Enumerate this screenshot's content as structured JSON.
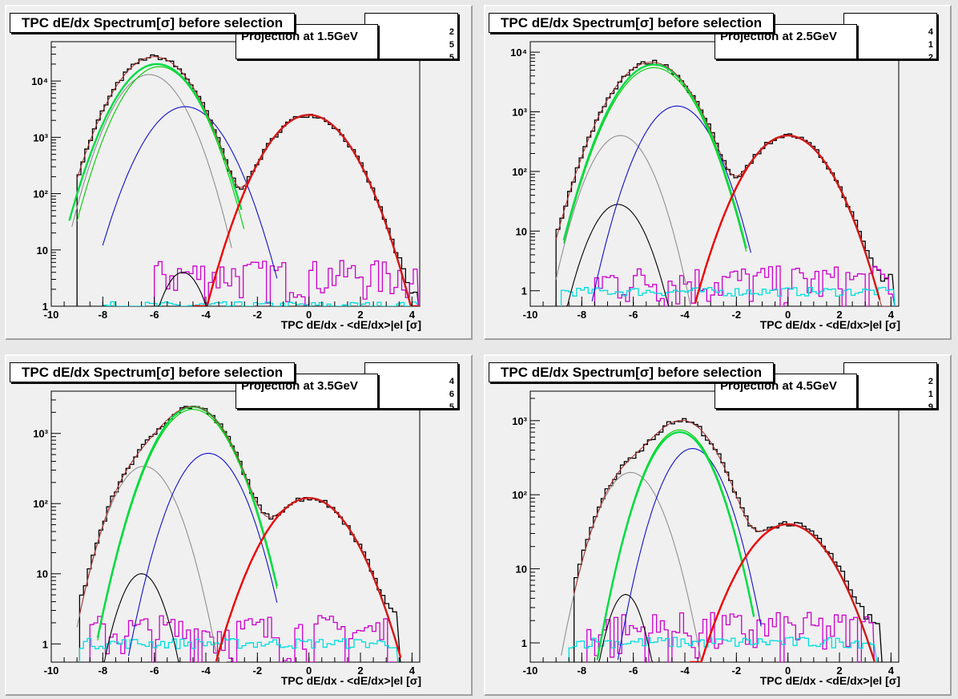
{
  "colors": {
    "data": "#000000",
    "fit_total": "#b03030",
    "electron": "#ee0000",
    "pion": "#1010cc",
    "kaon": "#00cc00",
    "proton": "#00dd44",
    "deuteron": "#000000",
    "other": "#909090",
    "residual1": "#cc00cc",
    "residual2": "#00dddd"
  },
  "panels": [
    {
      "title": "TPC dE/dx Spectrum[σ] before selection",
      "projection": "Projection at 1.5GeV",
      "stat_digits": [
        "2",
        "5",
        "5"
      ],
      "chart_data": {
        "type": "line",
        "yscale": "log",
        "xlim": [
          -10,
          4.3
        ],
        "ylim": [
          1,
          50000
        ],
        "xticks": [
          -10,
          -8,
          -6,
          -4,
          -2,
          0,
          2,
          4
        ],
        "yticks": [
          {
            "v": 1,
            "label": "1"
          },
          {
            "v": 10,
            "label": "10"
          },
          {
            "v": 100,
            "label": "10²"
          },
          {
            "v": 1000,
            "label": "10³"
          },
          {
            "v": 10000,
            "label": "10⁴"
          }
        ],
        "xlabel": "TPC dE/dx - <dE/dx>|el [σ]",
        "gaussians": [
          {
            "kind": "other",
            "A": 13000,
            "mu": -6.2,
            "sigma": 0.85,
            "range": [
              -9.2,
              -3.0
            ]
          },
          {
            "kind": "pion",
            "A": 3500,
            "mu": -4.8,
            "sigma": 0.95,
            "range": [
              -8.0,
              -1.2
            ]
          },
          {
            "kind": "kaon",
            "A": 18000,
            "mu": -5.8,
            "sigma": 0.9,
            "range": [
              -9.0,
              -2.5
            ]
          },
          {
            "kind": "proton",
            "A": 20000,
            "mu": -5.9,
            "sigma": 0.95,
            "range": [
              -9.3,
              -2.6
            ]
          },
          {
            "kind": "electron",
            "A": 2500,
            "mu": 0.0,
            "sigma": 1.0,
            "range": [
              -4.5,
              4.3
            ]
          },
          {
            "kind": "deuteron",
            "A": 4,
            "mu": -4.9,
            "sigma": 0.55,
            "range": [
              -6.2,
              -3.6
            ]
          }
        ],
        "total_peaks": [
          [
            -6.0,
            27000,
            0.95
          ],
          [
            0.0,
            2500,
            1.0
          ]
        ],
        "hist_range": [
          -9.0,
          4.1
        ],
        "residual1": {
          "range": [
            -6.0,
            4.1
          ],
          "level": 2.5
        },
        "residual2": {
          "range": [
            -8.0,
            4.1
          ],
          "level": 1.0
        }
      }
    },
    {
      "title": "TPC dE/dx Spectrum[σ] before selection",
      "projection": "Projection at 2.5GeV",
      "stat_digits": [
        "4",
        "1",
        "2"
      ],
      "chart_data": {
        "type": "line",
        "yscale": "log",
        "xlim": [
          -10,
          4.3
        ],
        "ylim": [
          0.55,
          15000
        ],
        "xticks": [
          -10,
          -8,
          -6,
          -4,
          -2,
          0,
          2,
          4
        ],
        "yticks": [
          {
            "v": 1,
            "label": "1"
          },
          {
            "v": 10,
            "label": "10"
          },
          {
            "v": 100,
            "label": "10²"
          },
          {
            "v": 1000,
            "label": "10³"
          },
          {
            "v": 10000,
            "label": "10⁴"
          }
        ],
        "xlabel": "TPC dE/dx - <dE/dx>|el [σ]",
        "gaussians": [
          {
            "kind": "other",
            "A": 400,
            "mu": -6.5,
            "sigma": 0.75,
            "range": [
              -9.0,
              -3.5
            ]
          },
          {
            "kind": "deuteron",
            "A": 28,
            "mu": -6.6,
            "sigma": 0.7,
            "range": [
              -8.7,
              -4.6
            ]
          },
          {
            "kind": "pion",
            "A": 1250,
            "mu": -4.3,
            "sigma": 0.85,
            "range": [
              -7.6,
              -1.4
            ]
          },
          {
            "kind": "kaon",
            "A": 5500,
            "mu": -5.2,
            "sigma": 0.95,
            "range": [
              -8.7,
              -1.6
            ]
          },
          {
            "kind": "proton",
            "A": 6200,
            "mu": -5.2,
            "sigma": 0.95,
            "range": [
              -8.7,
              -1.6
            ]
          },
          {
            "kind": "electron",
            "A": 400,
            "mu": 0.0,
            "sigma": 1.0,
            "range": [
              -3.6,
              3.6
            ]
          }
        ],
        "total_peaks": [
          [
            -5.3,
            6800,
            1.0
          ],
          [
            0.0,
            400,
            1.0
          ]
        ],
        "hist_range": [
          -9.0,
          4.0
        ],
        "residual1": {
          "range": [
            -7.5,
            4.0
          ],
          "level": 1.0
        },
        "residual2": {
          "range": [
            -8.8,
            4.0
          ],
          "level": 0.95
        }
      }
    },
    {
      "title": "TPC dE/dx Spectrum[σ] before selection",
      "projection": "Projection at 3.5GeV",
      "stat_digits": [
        "4",
        "6",
        "5"
      ],
      "chart_data": {
        "type": "line",
        "yscale": "log",
        "xlim": [
          -10,
          4.3
        ],
        "ylim": [
          0.55,
          4000
        ],
        "xticks": [
          -10,
          -8,
          -6,
          -4,
          -2,
          0,
          2,
          4
        ],
        "yticks": [
          {
            "v": 1,
            "label": "1"
          },
          {
            "v": 10,
            "label": "10"
          },
          {
            "v": 100,
            "label": "10²"
          },
          {
            "v": 1000,
            "label": "10³"
          }
        ],
        "xlabel": "TPC dE/dx - <dE/dx>|el [σ]",
        "gaussians": [
          {
            "kind": "other",
            "A": 340,
            "mu": -6.4,
            "sigma": 0.8,
            "range": [
              -9.0,
              -3.2
            ]
          },
          {
            "kind": "deuteron",
            "A": 10,
            "mu": -6.5,
            "sigma": 0.6,
            "range": [
              -8.3,
              -4.9
            ]
          },
          {
            "kind": "pion",
            "A": 520,
            "mu": -3.9,
            "sigma": 0.85,
            "range": [
              -7.0,
              -1.2
            ]
          },
          {
            "kind": "kaon",
            "A": 2200,
            "mu": -4.5,
            "sigma": 0.95,
            "range": [
              -8.2,
              -1.2
            ]
          },
          {
            "kind": "proton",
            "A": 2400,
            "mu": -4.5,
            "sigma": 0.95,
            "range": [
              -8.2,
              -1.2
            ]
          },
          {
            "kind": "electron",
            "A": 120,
            "mu": 0.0,
            "sigma": 1.1,
            "range": [
              -3.6,
              3.6
            ]
          }
        ],
        "total_peaks": [
          [
            -4.5,
            2400,
            0.95
          ],
          [
            -6.4,
            340,
            0.8
          ],
          [
            0.0,
            120,
            1.1
          ]
        ],
        "hist_range": [
          -8.9,
          3.4
        ],
        "residual1": {
          "range": [
            -8.5,
            3.2
          ],
          "level": 1.0
        },
        "residual2": {
          "range": [
            -8.9,
            3.3
          ],
          "level": 1.0
        }
      }
    },
    {
      "title": "TPC dE/dx Spectrum[σ] before selection",
      "projection": "Projection at 4.5GeV",
      "stat_digits": [
        "2",
        "1",
        "9"
      ],
      "chart_data": {
        "type": "line",
        "yscale": "log",
        "xlim": [
          -10,
          4.3
        ],
        "ylim": [
          0.55,
          2500
        ],
        "xticks": [
          -10,
          -8,
          -6,
          -4,
          -2,
          0,
          2,
          4
        ],
        "yticks": [
          {
            "v": 1,
            "label": "1"
          },
          {
            "v": 10,
            "label": "10"
          },
          {
            "v": 100,
            "label": "10²"
          },
          {
            "v": 1000,
            "label": "10³"
          }
        ],
        "xlabel": "TPC dE/dx - <dE/dx>|el [σ]",
        "gaussians": [
          {
            "kind": "other",
            "A": 200,
            "mu": -6.1,
            "sigma": 0.8,
            "range": [
              -8.8,
              -3.0
            ]
          },
          {
            "kind": "deuteron",
            "A": 4.5,
            "mu": -6.3,
            "sigma": 0.5,
            "range": [
              -7.5,
              -5.0
            ]
          },
          {
            "kind": "pion",
            "A": 420,
            "mu": -3.7,
            "sigma": 0.8,
            "range": [
              -6.6,
              -1.0
            ]
          },
          {
            "kind": "kaon",
            "A": 750,
            "mu": -4.2,
            "sigma": 0.85,
            "range": [
              -7.4,
              -1.3
            ]
          },
          {
            "kind": "proton",
            "A": 700,
            "mu": -4.2,
            "sigma": 0.85,
            "range": [
              -7.4,
              -1.3
            ]
          },
          {
            "kind": "electron",
            "A": 40,
            "mu": 0.0,
            "sigma": 1.15,
            "range": [
              -3.8,
              3.4
            ]
          }
        ],
        "total_peaks": [
          [
            -4.1,
            1000,
            0.95
          ],
          [
            -6.1,
            200,
            0.8
          ],
          [
            0.0,
            40,
            1.15
          ]
        ],
        "hist_range": [
          -8.3,
          3.5
        ],
        "residual1": {
          "range": [
            -7.8,
            3.2
          ],
          "level": 1.0
        },
        "residual2": {
          "range": [
            -8.5,
            3.3
          ],
          "level": 1.0
        }
      }
    }
  ]
}
